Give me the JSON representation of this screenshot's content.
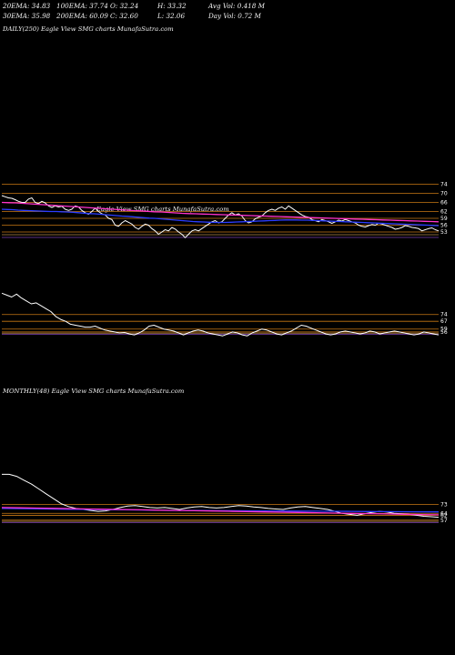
{
  "header": {
    "row1": [
      "20EMA: 34.83",
      "100EMA: 37.74",
      "O: 32.24",
      "H: 33.32",
      "Avg Vol: 0.418  M"
    ],
    "row2": [
      "30EMA: 35.98",
      "200EMA: 60.09",
      "C: 32.60",
      "L: 32.06",
      "Day Vol: 0.72  M"
    ]
  },
  "daily_label": "DAILY(250) Eagle   View  SMG charts MunafaSutra.com",
  "daily_watermark": "Eagle   View  SMG charts MunafaSutra.com",
  "monthly_label": "MONTHLY(48) Eagle   View  SMG charts MunafaSutra.com",
  "colors": {
    "background": "#000000",
    "price": "#ffffff",
    "ema_short": "#2b3cff",
    "ema_long": "#ff33cc",
    "level_lines": "#c87814",
    "ema_brown": "#b0844a"
  },
  "chart_data": [
    {
      "type": "line",
      "panel": "daily-price",
      "y_ticks": [
        74,
        70,
        66,
        62,
        59,
        56,
        53
      ],
      "ylim": [
        47,
        77
      ],
      "series": [
        {
          "values": [
            69,
            68.5,
            68,
            67.8,
            67.2,
            66.5,
            66,
            66,
            67.5,
            68,
            66,
            65.5,
            66.5,
            65.8,
            64.5,
            63.8,
            64.5,
            64,
            64.3,
            63,
            62.5,
            63,
            64.5,
            64,
            62.5,
            61.5,
            60.8,
            62,
            63.5,
            62,
            61,
            60.5,
            59,
            58.5,
            56,
            55.5,
            57,
            58,
            57.3,
            56.5,
            55,
            54.2,
            55.5,
            56.5,
            56,
            54.5,
            53.5,
            52,
            53,
            54,
            53.5,
            55,
            54.3,
            53,
            52,
            50.5,
            52,
            53.5,
            54,
            53.5,
            54.5,
            55.5,
            56.5,
            57.5,
            58,
            57,
            57.5,
            59,
            60.5,
            61.5,
            60.5,
            61,
            60,
            58,
            57,
            57.5,
            58.8,
            59.5,
            60,
            61.5,
            62.5,
            63,
            62.5,
            63.5,
            64,
            63,
            64.5,
            63.5,
            62.5,
            61.5,
            60.5,
            59.8,
            59.5,
            58.5,
            58,
            57.5,
            58.5,
            58,
            57.5,
            56.8,
            57.5,
            58.2,
            57.8,
            58.5,
            58,
            57.5,
            57,
            56,
            55.5,
            55.2,
            55.8,
            56.3,
            56,
            56.8,
            56.5,
            56,
            55.5,
            55,
            54.2,
            54.5,
            55,
            55.8,
            55.5,
            55,
            54.8,
            54.5,
            53.5,
            54,
            54.5,
            54.8,
            54,
            53.5
          ]
        },
        {
          "values": [
            63,
            62.9,
            62.8,
            62.6,
            62.5,
            62.4,
            62.3,
            62.2,
            62.1,
            62,
            62,
            61.9,
            61.8,
            61.7,
            61.5,
            61.3,
            61.1,
            61,
            60.8,
            60.6,
            60.4,
            60.2,
            60,
            59.9,
            59.7,
            59.5,
            59.3,
            59.1,
            59,
            58.8,
            58.6,
            58.4,
            58.2,
            58,
            57.8,
            57.6,
            57.5,
            57.4,
            57.3,
            57.2,
            57.2,
            57.2,
            57.3,
            57.4,
            57.5,
            57.6,
            57.7,
            57.8,
            57.9,
            58,
            58.1,
            58.2,
            58.3,
            58.3,
            58.3,
            58.2,
            58.2,
            58.1,
            58,
            57.9,
            57.8,
            57.7,
            57.6,
            57.5,
            57.4,
            57.3,
            57.2,
            57.1,
            57,
            56.9,
            56.8,
            56.7,
            56.6,
            56.5,
            56.4,
            56.3,
            56.2,
            56.1,
            56,
            55.9,
            55.8
          ]
        },
        {
          "values": [
            66,
            65.9,
            65.8,
            65.6,
            65.4,
            65.2,
            65,
            64.8,
            64.6,
            64.4,
            64.2,
            64,
            63.8,
            63.6,
            63.4,
            63.2,
            63,
            62.8,
            62.6,
            62.4,
            62.3,
            62.1,
            61.9,
            61.8,
            61.6,
            61.4,
            61.2,
            61.1,
            61,
            60.9,
            60.8,
            60.7,
            60.6,
            60.5,
            60.4,
            60.3,
            60.2,
            60.1,
            60,
            59.9,
            59.8,
            59.7,
            59.6,
            59.5,
            59.4,
            59.3,
            59.2,
            59.1,
            59,
            58.9,
            58.8,
            58.7,
            58.6,
            58.5,
            58.4,
            58.3,
            58.2,
            58.1,
            58,
            57.9,
            57.8,
            57.7,
            57.6,
            57.5
          ]
        }
      ]
    },
    {
      "type": "line",
      "panel": "daily-indicator",
      "y_ticks": [
        74,
        67,
        59,
        56
      ],
      "ylim": [
        40,
        100
      ],
      "series": [
        {
          "values": [
            96,
            94,
            92,
            95,
            91,
            88,
            85,
            86,
            83,
            80,
            77,
            72,
            69,
            67,
            64,
            63,
            62,
            61,
            61,
            62,
            60,
            58,
            57,
            56,
            55,
            55.5,
            54,
            53,
            55,
            58,
            62,
            63,
            61,
            59,
            58,
            57,
            55,
            53,
            55,
            57,
            58,
            57,
            55,
            54,
            53,
            52,
            54,
            56,
            55,
            53,
            52,
            55,
            57,
            59,
            58,
            56,
            54,
            53,
            55,
            57,
            60,
            63,
            62,
            60,
            58,
            56,
            54,
            53,
            54,
            56,
            57,
            56,
            55,
            54,
            55,
            57,
            56,
            54,
            55,
            56,
            57,
            56,
            55,
            54,
            53,
            54,
            56,
            55,
            54,
            53
          ]
        }
      ]
    },
    {
      "type": "line",
      "panel": "monthly",
      "y_ticks": [
        73,
        64,
        62,
        57
      ],
      "ylim": [
        40,
        110
      ],
      "series": [
        {
          "values": [
            104,
            104,
            102,
            98,
            94,
            89,
            84,
            79,
            74,
            71,
            69,
            68,
            67,
            66,
            66.5,
            68,
            70,
            71.5,
            72,
            71,
            70,
            69.5,
            70,
            69,
            68,
            69.5,
            70.5,
            71,
            70,
            69.5,
            70,
            71,
            72,
            71.5,
            70.5,
            70,
            69,
            68.5,
            68,
            69.5,
            70.5,
            71,
            70,
            69,
            68,
            66,
            64,
            63,
            62,
            63.5,
            65,
            66,
            65.5,
            64,
            63.5,
            63,
            62,
            61,
            60.5,
            60
          ]
        },
        {
          "values": [
            69,
            68.8,
            68.6,
            68.4,
            68.2,
            68,
            67.8,
            67.6,
            67.4,
            67.2,
            67,
            66.9,
            66.8,
            66.7,
            66.6,
            66.5,
            66.4,
            66.3,
            66.2,
            66.1,
            66,
            65.9,
            65.8,
            65.7,
            65.6,
            65.5
          ]
        },
        {
          "values": [
            70,
            69.7,
            69.4,
            69.1,
            68.8,
            68.5,
            68.2,
            67.9,
            67.6,
            67.3,
            67,
            66.7,
            66.4,
            66.1,
            65.8,
            65.5,
            65.2,
            64.9,
            64.6,
            64.3,
            64,
            63.7,
            63.4,
            63.1,
            62.8,
            62.5
          ]
        }
      ]
    }
  ]
}
